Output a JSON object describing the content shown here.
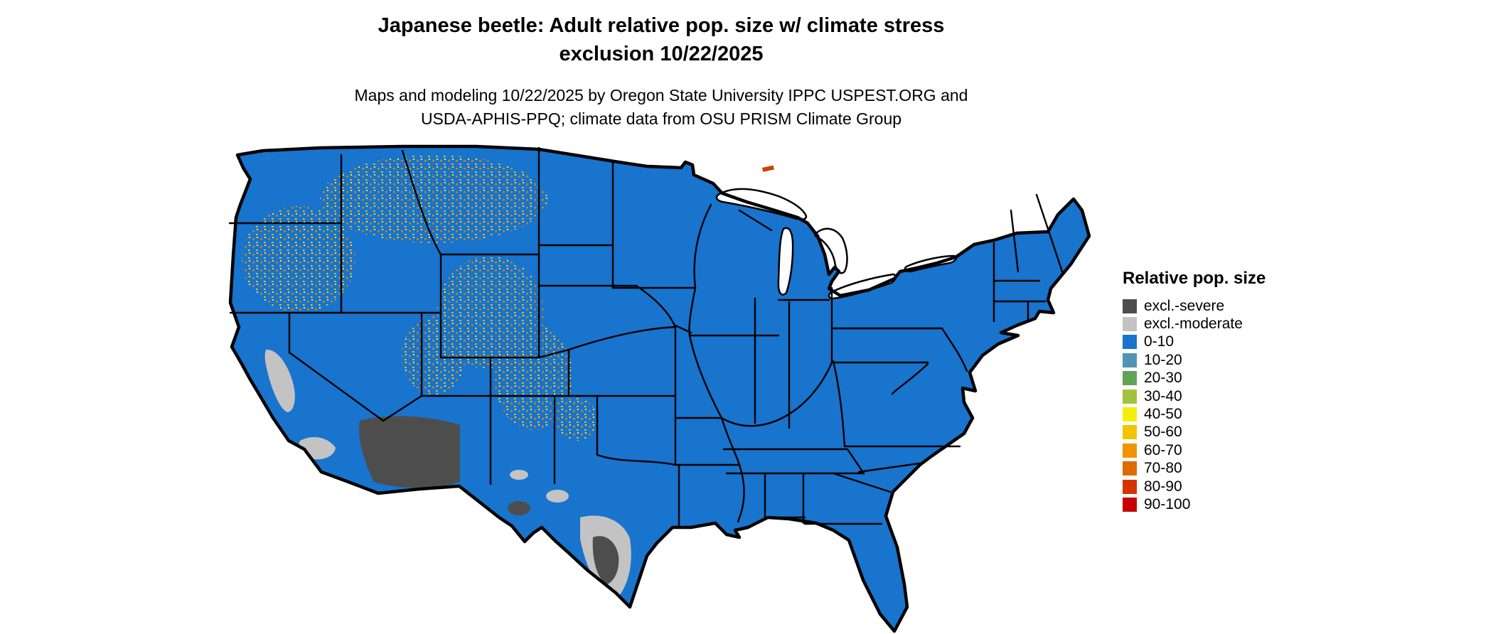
{
  "title": {
    "line1": "Japanese beetle: Adult relative pop. size w/ climate stress",
    "line2": "exclusion 10/22/2025"
  },
  "subtitle": {
    "line1": "Maps and modeling 10/22/2025 by Oregon State University IPPC USPEST.ORG and",
    "line2": "USDA-APHIS-PPQ; climate data from OSU PRISM Climate Group"
  },
  "legend": {
    "title": "Relative pop. size",
    "items": [
      {
        "label": "excl.-severe",
        "color": "#4d4d4d"
      },
      {
        "label": "excl.-moderate",
        "color": "#c3c3c3"
      },
      {
        "label": "0-10",
        "color": "#1874cd"
      },
      {
        "label": "10-20",
        "color": "#4f94b4"
      },
      {
        "label": "20-30",
        "color": "#63a355"
      },
      {
        "label": "30-40",
        "color": "#a3c23c"
      },
      {
        "label": "40-50",
        "color": "#f2ef0c"
      },
      {
        "label": "50-60",
        "color": "#f2c500"
      },
      {
        "label": "60-70",
        "color": "#f09400"
      },
      {
        "label": "70-80",
        "color": "#e06900"
      },
      {
        "label": "80-90",
        "color": "#d43500"
      },
      {
        "label": "90-100",
        "color": "#c40000"
      }
    ]
  },
  "map": {
    "region": "Continental United States",
    "base_class": "0-10",
    "base_color": "#1874cd",
    "severe_color": "#4d4d4d",
    "moderate_color": "#c3c3c3",
    "water_color": "#ffffff",
    "border_color": "#000000"
  },
  "chart_data": {
    "type": "choropleth-map",
    "title": "Japanese beetle: Adult relative pop. size w/ climate stress exclusion 10/22/2025",
    "legend_title": "Relative pop. size",
    "classes": [
      "excl.-severe",
      "excl.-moderate",
      "0-10",
      "10-20",
      "20-30",
      "30-40",
      "40-50",
      "50-60",
      "60-70",
      "70-80",
      "80-90",
      "90-100"
    ],
    "dominant_class": "0-10",
    "excl_severe_regions": [
      "southern Arizona",
      "southeastern California desert",
      "far south Texas"
    ],
    "excl_moderate_regions": [
      "California Central Valley",
      "southern coastal California",
      "south Texas",
      "scattered west Texas and New Mexico"
    ],
    "speckled_higher_value_regions": [
      "eastern Washington and Oregon",
      "Idaho",
      "western Montana",
      "Wyoming",
      "Utah",
      "Colorado Rockies"
    ]
  }
}
